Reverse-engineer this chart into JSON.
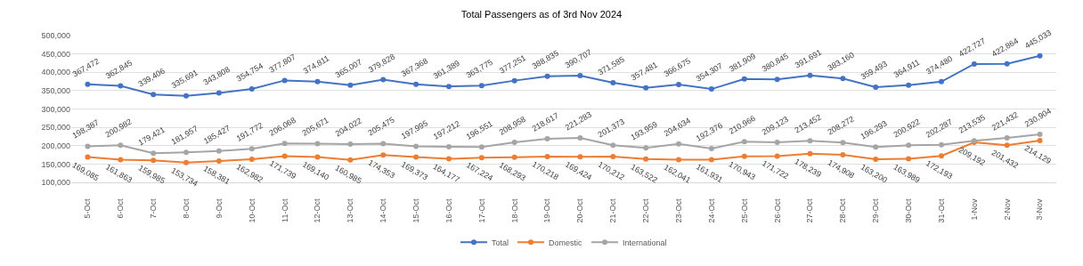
{
  "chart_data": {
    "type": "line",
    "title": "Total Passengers as of 3rd Nov 2024",
    "categories": [
      "5-Oct",
      "6-Oct",
      "7-Oct",
      "8-Oct",
      "9-Oct",
      "10-Oct",
      "11-Oct",
      "12-Oct",
      "13-Oct",
      "14-Oct",
      "15-Oct",
      "16-Oct",
      "17-Oct",
      "18-Oct",
      "19-Oct",
      "20-Oct",
      "21-Oct",
      "22-Oct",
      "23-Oct",
      "24-Oct",
      "25-Oct",
      "26-Oct",
      "27-Oct",
      "28-Oct",
      "29-Oct",
      "30-Oct",
      "31-Oct",
      "1-Nov",
      "2-Nov",
      "3-Nov"
    ],
    "series": [
      {
        "name": "Total",
        "color": "#4472c4",
        "values": [
          367472,
          362845,
          339406,
          335691,
          343808,
          354754,
          377807,
          374811,
          365007,
          379828,
          367368,
          361389,
          363775,
          377251,
          388835,
          390707,
          371585,
          357481,
          366675,
          354307,
          381909,
          380845,
          391691,
          383160,
          359493,
          364911,
          374480,
          422727,
          422864,
          445033
        ],
        "value_labels": [
          "367,472",
          "362,845",
          "339,406",
          "335,691",
          "343,808",
          "354,754",
          "377,807",
          "374,811",
          "365,007",
          "379,828",
          "367,368",
          "361,389",
          "363,775",
          "377,251",
          "388,835",
          "390,707",
          "371,585",
          "357,481",
          "366,675",
          "354,307",
          "381,909",
          "380,845",
          "391,691",
          "383,160",
          "359,493",
          "364,911",
          "374,480",
          "422,727",
          "422,864",
          "445,033"
        ]
      },
      {
        "name": "Domestic",
        "color": "#ed7d31",
        "values": [
          169085,
          161863,
          159985,
          153734,
          158381,
          162982,
          171739,
          169140,
          160985,
          174353,
          169373,
          164177,
          167224,
          168293,
          170218,
          169424,
          170212,
          163522,
          162041,
          161931,
          170943,
          171722,
          178239,
          174908,
          163200,
          163989,
          172193,
          209192,
          201432,
          214129
        ],
        "value_labels": [
          "169,085",
          "161,863",
          "159,985",
          "153,734",
          "158,381",
          "162,982",
          "171,739",
          "169,140",
          "160,985",
          "174,353",
          "169,373",
          "164,177",
          "167,224",
          "168,293",
          "170,218",
          "169,424",
          "170,212",
          "163,522",
          "162,041",
          "161,931",
          "170,943",
          "171,722",
          "178,239",
          "174,908",
          "163,200",
          "163,989",
          "172,193",
          "209,192",
          "201,432",
          "214,129"
        ]
      },
      {
        "name": "International",
        "color": "#a5a5a5",
        "values": [
          198387,
          200982,
          179421,
          181957,
          185427,
          191772,
          206068,
          205671,
          204022,
          205475,
          197995,
          197212,
          196551,
          208958,
          218617,
          221283,
          201373,
          193959,
          204634,
          192376,
          210966,
          209123,
          213452,
          208272,
          196293,
          200922,
          202287,
          213535,
          221432,
          230904
        ],
        "value_labels": [
          "198,387",
          "200,982",
          "179,421",
          "181,957",
          "185,427",
          "191,772",
          "206,068",
          "205,671",
          "204,022",
          "205,475",
          "197,995",
          "197,212",
          "196,551",
          "208,958",
          "218,617",
          "221,283",
          "201,373",
          "193,959",
          "204,634",
          "192,376",
          "210,966",
          "209,123",
          "213,452",
          "208,272",
          "196,293",
          "200,922",
          "202,287",
          "213,535",
          "221,432",
          "230,904"
        ]
      }
    ],
    "ylim": [
      100000,
      500000
    ],
    "yticks": [
      {
        "value": 100000,
        "label": "100,000"
      },
      {
        "value": 150000,
        "label": "150,000"
      },
      {
        "value": 200000,
        "label": "200,000"
      },
      {
        "value": 250000,
        "label": "250,000"
      },
      {
        "value": 300000,
        "label": "300,000"
      },
      {
        "value": 350000,
        "label": "350,000"
      },
      {
        "value": 400000,
        "label": "400,000"
      },
      {
        "value": 450000,
        "label": "450,000"
      },
      {
        "value": 500000,
        "label": "500,000"
      }
    ],
    "grid": "y",
    "legend": "bottom",
    "marker": "circle",
    "line_style": "solid"
  }
}
